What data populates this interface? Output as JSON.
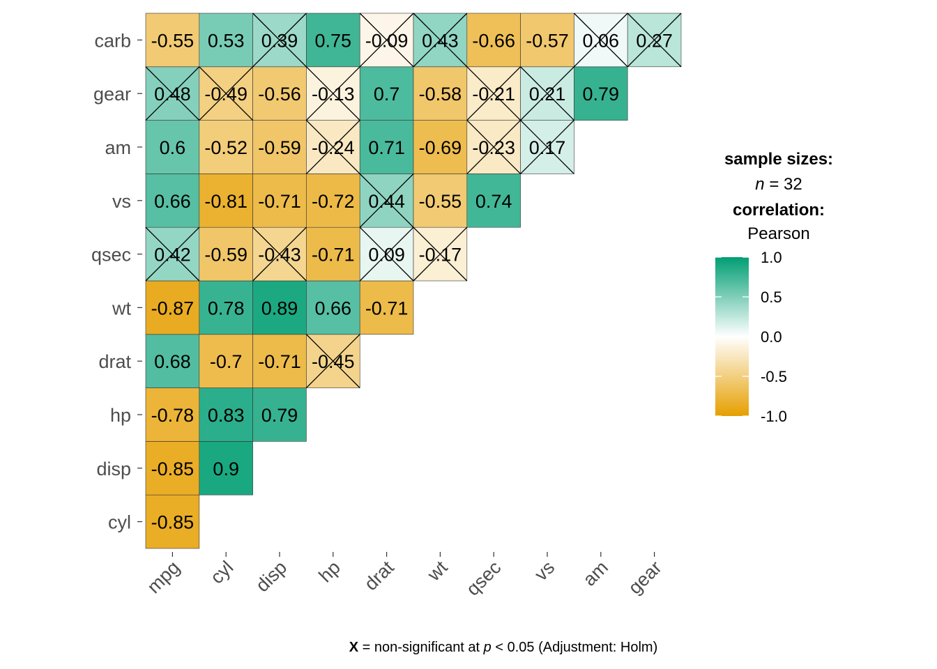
{
  "chart_data": {
    "type": "heatmap",
    "title": "",
    "xlabel": "",
    "ylabel": "",
    "x_categories": [
      "mpg",
      "cyl",
      "disp",
      "hp",
      "drat",
      "wt",
      "qsec",
      "vs",
      "am",
      "gear"
    ],
    "y_categories": [
      "cyl",
      "disp",
      "hp",
      "drat",
      "wt",
      "qsec",
      "vs",
      "am",
      "gear",
      "carb"
    ],
    "cells": [
      {
        "x": "mpg",
        "y": "cyl",
        "value": -0.85,
        "label": "-0.85",
        "nonsig": false
      },
      {
        "x": "mpg",
        "y": "disp",
        "value": -0.85,
        "label": "-0.85",
        "nonsig": false
      },
      {
        "x": "mpg",
        "y": "hp",
        "value": -0.78,
        "label": "-0.78",
        "nonsig": false
      },
      {
        "x": "mpg",
        "y": "drat",
        "value": 0.68,
        "label": "0.68",
        "nonsig": false
      },
      {
        "x": "mpg",
        "y": "wt",
        "value": -0.87,
        "label": "-0.87",
        "nonsig": false
      },
      {
        "x": "mpg",
        "y": "qsec",
        "value": 0.42,
        "label": "0.42",
        "nonsig": true
      },
      {
        "x": "mpg",
        "y": "vs",
        "value": 0.66,
        "label": "0.66",
        "nonsig": false
      },
      {
        "x": "mpg",
        "y": "am",
        "value": 0.6,
        "label": "0.6",
        "nonsig": false
      },
      {
        "x": "mpg",
        "y": "gear",
        "value": 0.48,
        "label": "0.48",
        "nonsig": true
      },
      {
        "x": "mpg",
        "y": "carb",
        "value": -0.55,
        "label": "-0.55",
        "nonsig": false
      },
      {
        "x": "cyl",
        "y": "disp",
        "value": 0.9,
        "label": "0.9",
        "nonsig": false
      },
      {
        "x": "cyl",
        "y": "hp",
        "value": 0.83,
        "label": "0.83",
        "nonsig": false
      },
      {
        "x": "cyl",
        "y": "drat",
        "value": -0.7,
        "label": "-0.7",
        "nonsig": false
      },
      {
        "x": "cyl",
        "y": "wt",
        "value": 0.78,
        "label": "0.78",
        "nonsig": false
      },
      {
        "x": "cyl",
        "y": "qsec",
        "value": -0.59,
        "label": "-0.59",
        "nonsig": false
      },
      {
        "x": "cyl",
        "y": "vs",
        "value": -0.81,
        "label": "-0.81",
        "nonsig": false
      },
      {
        "x": "cyl",
        "y": "am",
        "value": -0.52,
        "label": "-0.52",
        "nonsig": false
      },
      {
        "x": "cyl",
        "y": "gear",
        "value": -0.49,
        "label": "-0.49",
        "nonsig": true
      },
      {
        "x": "cyl",
        "y": "carb",
        "value": 0.53,
        "label": "0.53",
        "nonsig": false
      },
      {
        "x": "disp",
        "y": "hp",
        "value": 0.79,
        "label": "0.79",
        "nonsig": false
      },
      {
        "x": "disp",
        "y": "drat",
        "value": -0.71,
        "label": "-0.71",
        "nonsig": false
      },
      {
        "x": "disp",
        "y": "wt",
        "value": 0.89,
        "label": "0.89",
        "nonsig": false
      },
      {
        "x": "disp",
        "y": "qsec",
        "value": -0.43,
        "label": "-0.43",
        "nonsig": true
      },
      {
        "x": "disp",
        "y": "vs",
        "value": -0.71,
        "label": "-0.71",
        "nonsig": false
      },
      {
        "x": "disp",
        "y": "am",
        "value": -0.59,
        "label": "-0.59",
        "nonsig": false
      },
      {
        "x": "disp",
        "y": "gear",
        "value": -0.56,
        "label": "-0.56",
        "nonsig": false
      },
      {
        "x": "disp",
        "y": "carb",
        "value": 0.39,
        "label": "0.39",
        "nonsig": true
      },
      {
        "x": "hp",
        "y": "drat",
        "value": -0.45,
        "label": "-0.45",
        "nonsig": true
      },
      {
        "x": "hp",
        "y": "wt",
        "value": 0.66,
        "label": "0.66",
        "nonsig": false
      },
      {
        "x": "hp",
        "y": "qsec",
        "value": -0.71,
        "label": "-0.71",
        "nonsig": false
      },
      {
        "x": "hp",
        "y": "vs",
        "value": -0.72,
        "label": "-0.72",
        "nonsig": false
      },
      {
        "x": "hp",
        "y": "am",
        "value": -0.24,
        "label": "-0.24",
        "nonsig": true
      },
      {
        "x": "hp",
        "y": "gear",
        "value": -0.13,
        "label": "-0.13",
        "nonsig": true
      },
      {
        "x": "hp",
        "y": "carb",
        "value": 0.75,
        "label": "0.75",
        "nonsig": false
      },
      {
        "x": "drat",
        "y": "wt",
        "value": -0.71,
        "label": "-0.71",
        "nonsig": false
      },
      {
        "x": "drat",
        "y": "qsec",
        "value": 0.09,
        "label": "0.09",
        "nonsig": true
      },
      {
        "x": "drat",
        "y": "vs",
        "value": 0.44,
        "label": "0.44",
        "nonsig": true
      },
      {
        "x": "drat",
        "y": "am",
        "value": 0.71,
        "label": "0.71",
        "nonsig": false
      },
      {
        "x": "drat",
        "y": "gear",
        "value": 0.7,
        "label": "0.7",
        "nonsig": false
      },
      {
        "x": "drat",
        "y": "carb",
        "value": -0.09,
        "label": "-0.09",
        "nonsig": true
      },
      {
        "x": "wt",
        "y": "qsec",
        "value": -0.17,
        "label": "-0.17",
        "nonsig": true
      },
      {
        "x": "wt",
        "y": "vs",
        "value": -0.55,
        "label": "-0.55",
        "nonsig": false
      },
      {
        "x": "wt",
        "y": "am",
        "value": -0.69,
        "label": "-0.69",
        "nonsig": false
      },
      {
        "x": "wt",
        "y": "gear",
        "value": -0.58,
        "label": "-0.58",
        "nonsig": false
      },
      {
        "x": "wt",
        "y": "carb",
        "value": 0.43,
        "label": "0.43",
        "nonsig": true
      },
      {
        "x": "qsec",
        "y": "vs",
        "value": 0.74,
        "label": "0.74",
        "nonsig": false
      },
      {
        "x": "qsec",
        "y": "am",
        "value": -0.23,
        "label": "-0.23",
        "nonsig": true
      },
      {
        "x": "qsec",
        "y": "gear",
        "value": -0.21,
        "label": "-0.21",
        "nonsig": true
      },
      {
        "x": "qsec",
        "y": "carb",
        "value": -0.66,
        "label": "-0.66",
        "nonsig": false
      },
      {
        "x": "vs",
        "y": "am",
        "value": 0.17,
        "label": "0.17",
        "nonsig": true
      },
      {
        "x": "vs",
        "y": "gear",
        "value": 0.21,
        "label": "0.21",
        "nonsig": true
      },
      {
        "x": "vs",
        "y": "carb",
        "value": -0.57,
        "label": "-0.57",
        "nonsig": false
      },
      {
        "x": "am",
        "y": "gear",
        "value": 0.79,
        "label": "0.79",
        "nonsig": false
      },
      {
        "x": "am",
        "y": "carb",
        "value": 0.06,
        "label": "0.06",
        "nonsig": true
      },
      {
        "x": "gear",
        "y": "carb",
        "value": 0.27,
        "label": "0.27",
        "nonsig": true
      }
    ],
    "color_scale": {
      "low": "#E69F00",
      "mid": "#FFFFFF",
      "high": "#009E73",
      "limits": [
        -1.0,
        1.0
      ],
      "ticks": [
        "1.0",
        "0.5",
        "0.0",
        "-0.5",
        "-1.0"
      ]
    },
    "legend": {
      "position": "right",
      "line1_bold": "sample sizes:",
      "line2_italic": "n",
      "line2_rest": " = 32",
      "line3_bold": "correlation:",
      "line4": "Pearson"
    },
    "caption": {
      "bold": "X",
      "part1": " = non-significant at ",
      "italic": "p",
      "part2": " < 0.05 (Adjustment: Holm)"
    },
    "grid": false
  }
}
